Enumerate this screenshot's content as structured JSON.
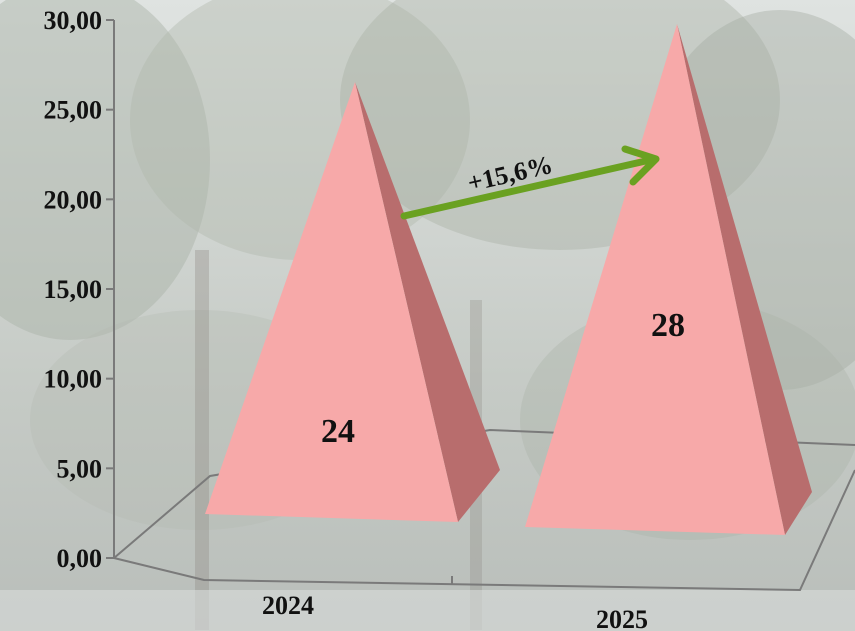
{
  "chart_data": {
    "type": "bar",
    "style": "pyramid-3d",
    "categories": [
      "2024",
      "2025"
    ],
    "values": [
      24,
      28
    ],
    "data_labels": [
      "24",
      "28"
    ],
    "yticks": [
      "0,00",
      "5,00",
      "10,00",
      "15,00",
      "20,00",
      "25,00",
      "30,00"
    ],
    "ylim": [
      0,
      30
    ],
    "title": "",
    "xlabel": "",
    "ylabel": "",
    "annotation": {
      "text": "+15,6%",
      "from": "2024",
      "to": "2025"
    },
    "colors": {
      "pyramid_front": "#f7a9a9",
      "pyramid_side": "#b86d6d",
      "arrow": "#6aa121",
      "axis": "#7a7a7a"
    }
  }
}
